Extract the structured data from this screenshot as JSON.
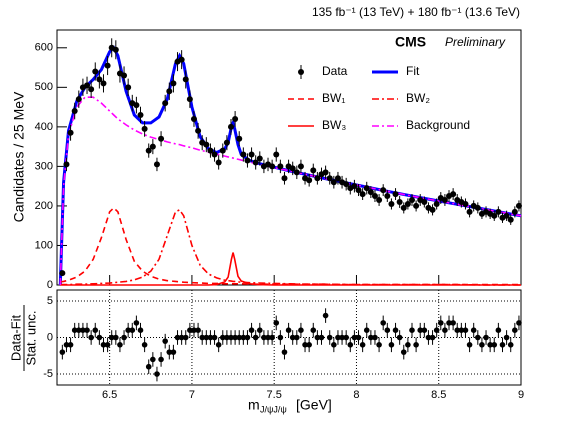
{
  "chart_data": {
    "type": "fit",
    "lumi_label": "135 fb⁻¹ (13 TeV) + 180 fb⁻¹ (13.6 TeV)",
    "experiment": "CMS",
    "status": "Preliminary",
    "y_label": "Candidates / 25 MeV",
    "x_label": "m",
    "x_label_sub": "J/ψJ/ψ",
    "x_label_unit": "[GeV]",
    "pull_label_top": "Data-Fit",
    "pull_label_bottom": "Stat. unc.",
    "xlim": [
      6.18,
      9.0
    ],
    "xticks": [
      6.5,
      7,
      7.5,
      8,
      8.5,
      9
    ],
    "ylim": [
      0,
      645
    ],
    "yticks": [
      0,
      100,
      200,
      300,
      400,
      500,
      600
    ],
    "pull_ylim": [
      -6.5,
      6.5
    ],
    "pull_yticks": [
      -5,
      0,
      5
    ],
    "data": {
      "name": "Data",
      "color": "#000000",
      "x": [
        6.2125,
        6.2375,
        6.2625,
        6.2875,
        6.3125,
        6.3375,
        6.3625,
        6.3875,
        6.4125,
        6.4375,
        6.4625,
        6.4875,
        6.5125,
        6.5375,
        6.5625,
        6.5875,
        6.6125,
        6.6375,
        6.6625,
        6.6875,
        6.7125,
        6.7375,
        6.7625,
        6.7875,
        6.8125,
        6.8375,
        6.8625,
        6.8875,
        6.9125,
        6.9375,
        6.9625,
        6.9875,
        7.0125,
        7.0375,
        7.0625,
        7.0875,
        7.1125,
        7.1375,
        7.1625,
        7.1875,
        7.2125,
        7.2375,
        7.2625,
        7.2875,
        7.3125,
        7.3375,
        7.3625,
        7.3875,
        7.4125,
        7.4375,
        7.4625,
        7.4875,
        7.5125,
        7.5375,
        7.5625,
        7.5875,
        7.6125,
        7.6375,
        7.6625,
        7.6875,
        7.7125,
        7.7375,
        7.7625,
        7.7875,
        7.8125,
        7.8375,
        7.8625,
        7.8875,
        7.9125,
        7.9375,
        7.9625,
        7.9875,
        8.0125,
        8.0375,
        8.0625,
        8.0875,
        8.1125,
        8.1375,
        8.1625,
        8.1875,
        8.2125,
        8.2375,
        8.2625,
        8.2875,
        8.3125,
        8.3375,
        8.3625,
        8.3875,
        8.4125,
        8.4375,
        8.4625,
        8.4875,
        8.5125,
        8.5375,
        8.5625,
        8.5875,
        8.6125,
        8.6375,
        8.6625,
        8.6875,
        8.7125,
        8.7375,
        8.7625,
        8.7875,
        8.8125,
        8.8375,
        8.8625,
        8.8875,
        8.9125,
        8.9375,
        8.9625,
        8.9875
      ],
      "values": [
        30,
        305,
        385,
        440,
        470,
        500,
        505,
        495,
        540,
        520,
        510,
        555,
        600,
        595,
        535,
        530,
        500,
        460,
        455,
        430,
        395,
        340,
        350,
        305,
        370,
        460,
        490,
        510,
        565,
        570,
        520,
        470,
        420,
        390,
        360,
        355,
        340,
        330,
        310,
        340,
        360,
        400,
        420,
        370,
        330,
        315,
        330,
        310,
        320,
        300,
        305,
        300,
        330,
        300,
        270,
        300,
        295,
        285,
        300,
        270,
        265,
        290,
        270,
        280,
        285,
        270,
        260,
        270,
        260,
        255,
        245,
        250,
        240,
        230,
        245,
        235,
        225,
        215,
        240,
        225,
        205,
        230,
        210,
        195,
        205,
        215,
        200,
        215,
        210,
        195,
        190,
        205,
        220,
        215,
        225,
        230,
        215,
        210,
        205,
        185,
        200,
        195,
        180,
        185,
        180,
        175,
        185,
        170,
        175,
        165,
        185,
        200
      ],
      "errors": [
        6,
        17,
        20,
        21,
        22,
        22,
        22,
        22,
        23,
        23,
        23,
        24,
        24,
        24,
        23,
        23,
        22,
        21,
        21,
        21,
        20,
        18,
        19,
        17,
        19,
        21,
        22,
        23,
        24,
        24,
        23,
        22,
        20,
        20,
        19,
        19,
        18,
        18,
        18,
        18,
        19,
        20,
        20,
        19,
        18,
        18,
        18,
        18,
        18,
        17,
        17,
        17,
        18,
        17,
        16,
        17,
        17,
        17,
        17,
        16,
        16,
        17,
        16,
        17,
        17,
        16,
        16,
        16,
        16,
        16,
        16,
        16,
        15,
        15,
        16,
        15,
        15,
        15,
        15,
        15,
        14,
        15,
        15,
        14,
        14,
        15,
        14,
        15,
        14,
        14,
        14,
        14,
        15,
        15,
        15,
        15,
        15,
        14,
        14,
        14,
        14,
        14,
        13,
        14,
        13,
        13,
        14,
        13,
        13,
        13,
        14,
        14
      ]
    },
    "pulls": [
      -2,
      -1,
      -1,
      1,
      1,
      1,
      1,
      0,
      1,
      0,
      -1,
      -1,
      0,
      0,
      -1,
      0,
      1,
      1,
      2,
      1,
      -1,
      -4,
      -3,
      -5,
      -3,
      -0.5,
      -2,
      -2,
      0,
      0,
      0,
      1,
      1,
      1,
      0,
      0,
      0,
      0,
      -1,
      0,
      0,
      0,
      0,
      0,
      0,
      0,
      1,
      0,
      1,
      0,
      0,
      0,
      2,
      0,
      -2,
      1,
      0,
      0,
      1,
      -1,
      -1,
      1,
      0,
      0,
      3,
      0,
      -1,
      0,
      0,
      0,
      -1,
      0,
      0,
      -1,
      1,
      0,
      0,
      -1,
      2,
      1,
      -1,
      1,
      0,
      -2,
      -1,
      1,
      -1,
      1,
      1,
      0,
      0,
      1,
      2,
      1,
      2,
      2,
      1,
      1,
      1,
      -1,
      1,
      0,
      -1,
      0,
      -1,
      -1,
      1,
      -1,
      0,
      -1,
      1,
      2
    ],
    "pull_error": 1,
    "curve_x": [
      6.2,
      6.22,
      6.25,
      6.3,
      6.35,
      6.4,
      6.45,
      6.5,
      6.525,
      6.55,
      6.6,
      6.65,
      6.7,
      6.75,
      6.8,
      6.85,
      6.9,
      6.925,
      6.95,
      7.0,
      7.05,
      7.1,
      7.15,
      7.2,
      7.22,
      7.24,
      7.25,
      7.26,
      7.28,
      7.3,
      7.35,
      7.4,
      7.5,
      7.6,
      7.7,
      7.8,
      8.0,
      8.2,
      8.4,
      8.6,
      8.8,
      9.0
    ],
    "series": [
      {
        "name": "Fit",
        "color": "#0000ff",
        "style": "solid",
        "width": 3,
        "values": [
          0,
          260,
          390,
          465,
          500,
          520,
          545,
          590,
          600,
          580,
          490,
          430,
          410,
          410,
          425,
          470,
          560,
          580,
          560,
          450,
          375,
          345,
          335,
          345,
          360,
          400,
          410,
          395,
          355,
          330,
          315,
          308,
          298,
          288,
          279,
          270,
          253,
          236,
          220,
          205,
          190,
          175
        ]
      },
      {
        "name": "BW₁",
        "color": "#ff0000",
        "style": "dashed",
        "width": 1.6,
        "values": [
          8,
          9,
          12,
          20,
          35,
          65,
          120,
          185,
          195,
          185,
          115,
          60,
          35,
          22,
          15,
          11,
          9,
          8,
          7,
          6,
          5,
          4,
          4,
          3,
          3,
          3,
          3,
          3,
          3,
          3,
          2,
          2,
          2,
          2,
          2,
          2,
          1,
          1,
          1,
          1,
          1,
          1
        ]
      },
      {
        "name": "BW₂",
        "color": "#ff0000",
        "style": "dashdot",
        "width": 1.6,
        "values": [
          1,
          1,
          1,
          2,
          2,
          3,
          4,
          5,
          6,
          7,
          9,
          13,
          20,
          35,
          65,
          125,
          185,
          190,
          175,
          100,
          50,
          28,
          18,
          12,
          11,
          10,
          9,
          9,
          8,
          7,
          6,
          5,
          4,
          3,
          2,
          2,
          1,
          1,
          1,
          1,
          0,
          0
        ]
      },
      {
        "name": "BW₃",
        "color": "#ff0000",
        "style": "solid",
        "width": 1.6,
        "values": [
          0,
          0,
          0,
          0,
          0,
          0,
          0,
          0,
          0,
          0,
          0,
          0,
          0,
          0,
          0,
          0,
          0,
          0,
          0,
          0,
          0,
          0,
          1,
          8,
          20,
          65,
          82,
          65,
          22,
          10,
          3,
          1,
          0,
          0,
          0,
          0,
          0,
          0,
          0,
          0,
          0,
          0
        ]
      },
      {
        "name": "Background",
        "color": "#ff00ff",
        "style": "dashdot",
        "width": 1.6,
        "values": [
          0,
          250,
          380,
          450,
          475,
          475,
          460,
          440,
          430,
          420,
          405,
          392,
          382,
          374,
          368,
          362,
          357,
          355,
          352,
          347,
          341,
          336,
          331,
          326,
          324,
          322,
          321,
          320,
          318,
          316,
          311,
          306,
          297,
          288,
          279,
          270,
          253,
          236,
          220,
          205,
          190,
          175
        ]
      }
    ]
  }
}
